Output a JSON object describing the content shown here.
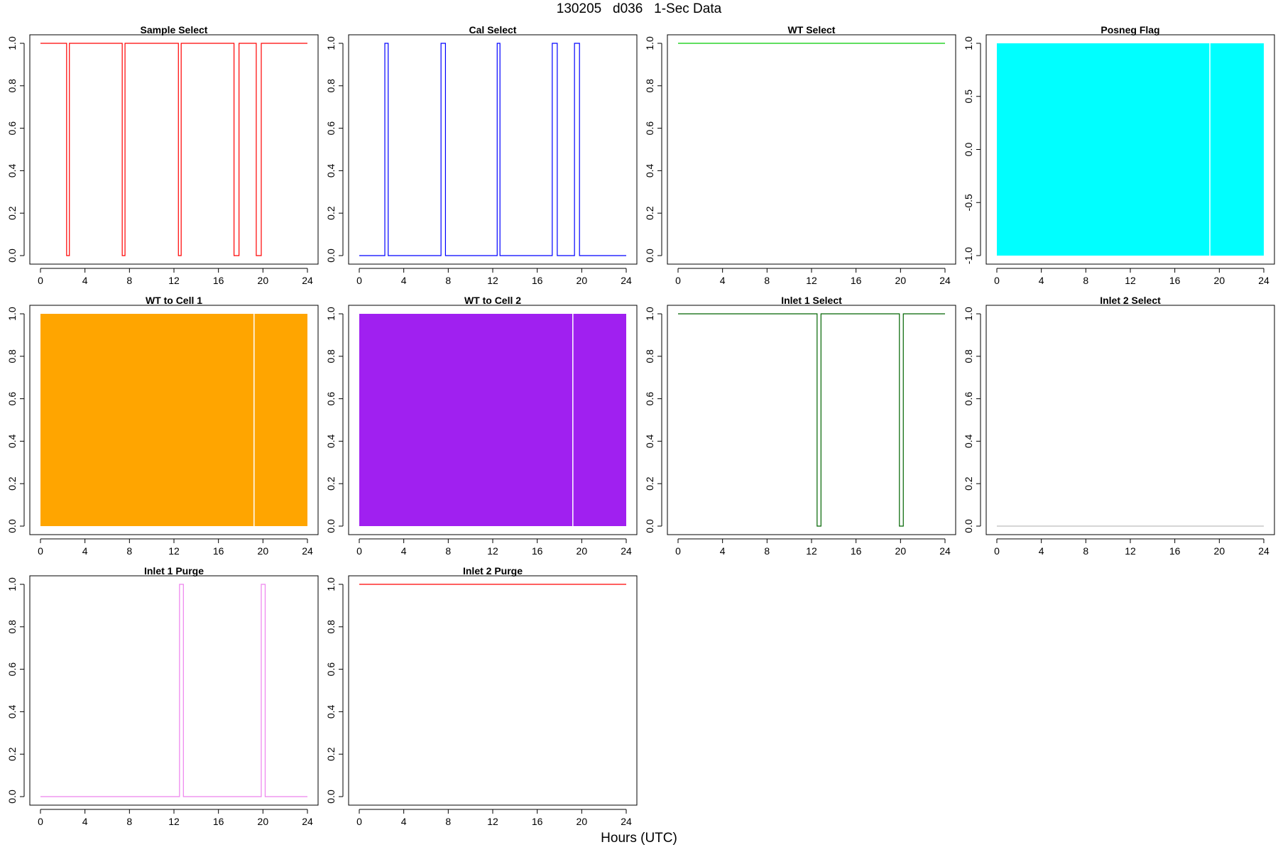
{
  "page": {
    "title": "130205   d036   1-Sec Data",
    "xlabel": "Hours (UTC)"
  },
  "chart_data": [
    {
      "type": "line",
      "title": "Sample Select",
      "color": "#ff0000",
      "xlim": [
        0,
        24
      ],
      "ylim": [
        0,
        1
      ],
      "xticks": [
        "0",
        "4",
        "8",
        "12",
        "16",
        "20",
        "24"
      ],
      "yticks": [
        "0.0",
        "0.2",
        "0.4",
        "0.6",
        "0.8",
        "1.0"
      ],
      "steps": [
        [
          0,
          1
        ],
        [
          2.35,
          0
        ],
        [
          2.6,
          1
        ],
        [
          7.35,
          0
        ],
        [
          7.6,
          1
        ],
        [
          12.4,
          0
        ],
        [
          12.65,
          1
        ],
        [
          17.4,
          0
        ],
        [
          17.85,
          1
        ],
        [
          19.4,
          0
        ],
        [
          19.85,
          1
        ],
        [
          24,
          1
        ]
      ]
    },
    {
      "type": "line",
      "title": "Cal Select",
      "color": "#0000ff",
      "xlim": [
        0,
        24
      ],
      "ylim": [
        0,
        1
      ],
      "xticks": [
        "0",
        "4",
        "8",
        "12",
        "16",
        "20",
        "24"
      ],
      "yticks": [
        "0.0",
        "0.2",
        "0.4",
        "0.6",
        "0.8",
        "1.0"
      ],
      "steps": [
        [
          0,
          0
        ],
        [
          2.3,
          1
        ],
        [
          2.6,
          0
        ],
        [
          7.35,
          1
        ],
        [
          7.75,
          0
        ],
        [
          12.4,
          1
        ],
        [
          12.65,
          0
        ],
        [
          17.35,
          1
        ],
        [
          17.8,
          0
        ],
        [
          19.35,
          1
        ],
        [
          19.8,
          0
        ],
        [
          24,
          0
        ]
      ]
    },
    {
      "type": "line",
      "title": "WT Select",
      "color": "#00cc00",
      "xlim": [
        0,
        24
      ],
      "ylim": [
        0,
        1
      ],
      "xticks": [
        "0",
        "4",
        "8",
        "12",
        "16",
        "20",
        "24"
      ],
      "yticks": [
        "0.0",
        "0.2",
        "0.4",
        "0.6",
        "0.8",
        "1.0"
      ],
      "steps": [
        [
          0,
          1
        ],
        [
          24,
          1
        ]
      ]
    },
    {
      "type": "area",
      "title": "Posneg Flag",
      "color": "#00ffff",
      "xlim": [
        0,
        24
      ],
      "ylim": [
        -1,
        1
      ],
      "xticks": [
        "0",
        "4",
        "8",
        "12",
        "16",
        "20",
        "24"
      ],
      "yticks": [
        "-1.0",
        "-0.5",
        "0.0",
        "0.5",
        "1.0"
      ],
      "fill_range": [
        -1,
        1
      ],
      "gaps": [
        19.15
      ]
    },
    {
      "type": "area",
      "title": "WT to Cell 1",
      "color": "#ffa500",
      "xlim": [
        0,
        24
      ],
      "ylim": [
        0,
        1
      ],
      "xticks": [
        "0",
        "4",
        "8",
        "12",
        "16",
        "20",
        "24"
      ],
      "yticks": [
        "0.0",
        "0.2",
        "0.4",
        "0.6",
        "0.8",
        "1.0"
      ],
      "fill_range": [
        0,
        1
      ],
      "gaps": [
        19.2
      ]
    },
    {
      "type": "area",
      "title": "WT to Cell 2",
      "color": "#a020f0",
      "xlim": [
        0,
        24
      ],
      "ylim": [
        0,
        1
      ],
      "xticks": [
        "0",
        "4",
        "8",
        "12",
        "16",
        "20",
        "24"
      ],
      "yticks": [
        "0.0",
        "0.2",
        "0.4",
        "0.6",
        "0.8",
        "1.0"
      ],
      "fill_range": [
        0,
        1
      ],
      "gaps": [
        19.2
      ]
    },
    {
      "type": "line",
      "title": "Inlet 1 Select",
      "color": "#006400",
      "xlim": [
        0,
        24
      ],
      "ylim": [
        0,
        1
      ],
      "xticks": [
        "0",
        "4",
        "8",
        "12",
        "16",
        "20",
        "24"
      ],
      "yticks": [
        "0.0",
        "0.2",
        "0.4",
        "0.6",
        "0.8",
        "1.0"
      ],
      "steps": [
        [
          0,
          1
        ],
        [
          12.5,
          0
        ],
        [
          12.85,
          1
        ],
        [
          19.9,
          0
        ],
        [
          20.25,
          1
        ],
        [
          24,
          1
        ]
      ]
    },
    {
      "type": "line",
      "title": "Inlet 2 Select",
      "color": "#bebebe",
      "xlim": [
        0,
        24
      ],
      "ylim": [
        0,
        1
      ],
      "xticks": [
        "0",
        "4",
        "8",
        "12",
        "16",
        "20",
        "24"
      ],
      "yticks": [
        "0.0",
        "0.2",
        "0.4",
        "0.6",
        "0.8",
        "1.0"
      ],
      "steps": [
        [
          0,
          0
        ],
        [
          24,
          0
        ]
      ]
    },
    {
      "type": "line",
      "title": "Inlet 1 Purge",
      "color": "#ee82ee",
      "xlim": [
        0,
        24
      ],
      "ylim": [
        0,
        1
      ],
      "xticks": [
        "0",
        "4",
        "8",
        "12",
        "16",
        "20",
        "24"
      ],
      "yticks": [
        "0.0",
        "0.2",
        "0.4",
        "0.6",
        "0.8",
        "1.0"
      ],
      "steps": [
        [
          0,
          0
        ],
        [
          12.5,
          1
        ],
        [
          12.85,
          0
        ],
        [
          19.85,
          1
        ],
        [
          20.2,
          0
        ],
        [
          24,
          0
        ]
      ]
    },
    {
      "type": "line",
      "title": "Inlet 2 Purge",
      "color": "#ff0000",
      "xlim": [
        0,
        24
      ],
      "ylim": [
        0,
        1
      ],
      "xticks": [
        "0",
        "4",
        "8",
        "12",
        "16",
        "20",
        "24"
      ],
      "yticks": [
        "0.0",
        "0.2",
        "0.4",
        "0.6",
        "0.8",
        "1.0"
      ],
      "steps": [
        [
          0,
          1
        ],
        [
          24,
          1
        ]
      ]
    }
  ]
}
